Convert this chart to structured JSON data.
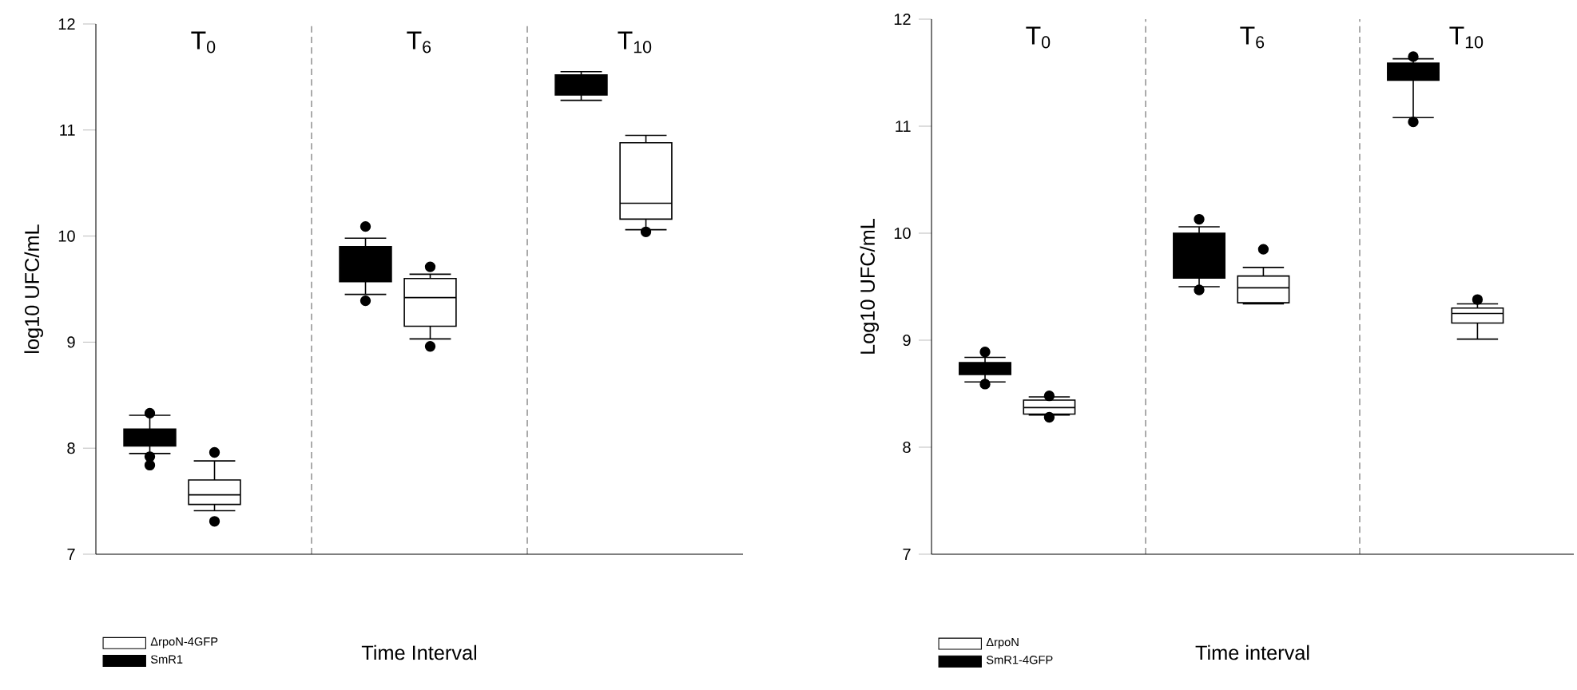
{
  "chart_data": [
    {
      "type": "box",
      "xlabel": "Time Interval",
      "ylabel": "log10 UFC/mL",
      "categories": [
        "T$_{0}$",
        "T$_{6}$",
        "T$_{10}$"
      ],
      "ylim": [
        7,
        12
      ],
      "yticks": [
        7,
        8,
        9,
        10,
        11,
        12
      ],
      "tick_labels": "y",
      "grid": "x",
      "legend": "bottom left",
      "marker": "circle",
      "series": [
        {
          "name": "SmR1",
          "color": "#000000",
          "boxes": [
            {
              "low": 7.95,
              "q1": 8.02,
              "median": 8.1,
              "q3": 8.18,
              "high": 8.31,
              "outliers": [
                8.33,
                7.92,
                7.84
              ]
            },
            {
              "low": 9.45,
              "q1": 9.57,
              "median": 9.7,
              "q3": 9.9,
              "high": 9.98,
              "outliers": [
                10.09,
                9.39
              ]
            },
            {
              "low": 11.28,
              "q1": 11.33,
              "median": 11.4,
              "q3": 11.52,
              "high": 11.55
            }
          ]
        },
        {
          "name": "ΔrpoN-4GFP",
          "color": "#ffffff",
          "boxes": [
            {
              "low": 7.41,
              "q1": 7.47,
              "median": 7.56,
              "q3": 7.7,
              "high": 7.88,
              "outliers": [
                7.96,
                7.31
              ]
            },
            {
              "low": 9.03,
              "q1": 9.15,
              "median": 9.42,
              "q3": 9.6,
              "high": 9.64,
              "outliers": [
                9.71,
                8.96
              ]
            },
            {
              "low": 10.06,
              "q1": 10.16,
              "median": 10.31,
              "q3": 10.88,
              "high": 10.95,
              "outliers": [
                10.04
              ]
            }
          ]
        }
      ]
    },
    {
      "type": "box",
      "xlabel": "Time interval",
      "ylabel": "Log10 UFC/mL",
      "categories": [
        "T$_{0}$",
        "T$_{6}$",
        "T$_{10}$"
      ],
      "ylim": [
        7,
        12
      ],
      "yticks": [
        7,
        8,
        9,
        10,
        11,
        12
      ],
      "tick_labels": "y",
      "grid": "x",
      "legend": "bottom left",
      "marker": "circle",
      "series": [
        {
          "name": "SmR1-4GFP",
          "color": "#000000",
          "boxes": [
            {
              "low": 8.61,
              "q1": 8.68,
              "median": 8.73,
              "q3": 8.79,
              "high": 8.84,
              "outliers": [
                8.89,
                8.59
              ]
            },
            {
              "low": 9.5,
              "q1": 9.58,
              "median": 9.8,
              "q3": 10.0,
              "high": 10.06,
              "outliers": [
                10.13,
                9.47
              ]
            },
            {
              "low": 11.08,
              "q1": 11.43,
              "median": 11.5,
              "q3": 11.59,
              "high": 11.63,
              "outliers": [
                11.65,
                11.04
              ]
            }
          ]
        },
        {
          "name": "ΔrpoN",
          "color": "#ffffff",
          "boxes": [
            {
              "low": 8.3,
              "q1": 8.31,
              "median": 8.37,
              "q3": 8.44,
              "high": 8.47,
              "outliers": [
                8.48,
                8.28
              ]
            },
            {
              "low": 9.34,
              "q1": 9.35,
              "median": 9.49,
              "q3": 9.6,
              "high": 9.68,
              "outliers": [
                9.85
              ]
            },
            {
              "low": 9.01,
              "q1": 9.16,
              "median": 9.25,
              "q3": 9.3,
              "high": 9.34,
              "outliers": [
                9.38
              ]
            }
          ]
        }
      ]
    }
  ]
}
